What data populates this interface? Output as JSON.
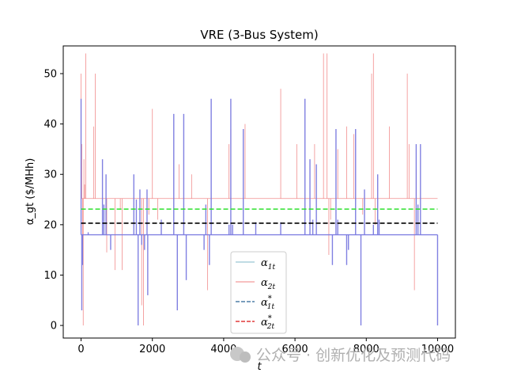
{
  "chart_data": {
    "type": "line",
    "title": "VRE (3-Bus System)",
    "xlabel": "t",
    "ylabel": "α_gt ($/MHh)",
    "xlim": [
      -500,
      10500
    ],
    "ylim": [
      -2.5,
      55.5
    ],
    "xticks": [
      0,
      2000,
      4000,
      6000,
      8000,
      10000
    ],
    "yticks": [
      0,
      10,
      20,
      30,
      40,
      50
    ],
    "grid": false,
    "legend_position": "lower-center",
    "series": [
      {
        "name": "α1t",
        "color": "#7a7ae0",
        "baseline": 18,
        "spikes": [
          {
            "x": 0,
            "y": 45
          },
          {
            "x": 20,
            "y": 3
          },
          {
            "x": 40,
            "y": 12
          },
          {
            "x": 200,
            "y": 18.5
          },
          {
            "x": 600,
            "y": 33
          },
          {
            "x": 640,
            "y": 24
          },
          {
            "x": 700,
            "y": 30
          },
          {
            "x": 830,
            "y": 15
          },
          {
            "x": 1480,
            "y": 30
          },
          {
            "x": 1550,
            "y": 25
          },
          {
            "x": 1600,
            "y": 0
          },
          {
            "x": 1650,
            "y": 27
          },
          {
            "x": 1700,
            "y": 16
          },
          {
            "x": 1780,
            "y": 15
          },
          {
            "x": 1850,
            "y": 27
          },
          {
            "x": 1870,
            "y": 6
          },
          {
            "x": 2250,
            "y": 21
          },
          {
            "x": 2600,
            "y": 42
          },
          {
            "x": 2700,
            "y": 3
          },
          {
            "x": 2880,
            "y": 42
          },
          {
            "x": 2950,
            "y": 9
          },
          {
            "x": 3450,
            "y": 15
          },
          {
            "x": 3500,
            "y": 24
          },
          {
            "x": 3600,
            "y": 12
          },
          {
            "x": 3650,
            "y": 45
          },
          {
            "x": 4150,
            "y": 20
          },
          {
            "x": 4200,
            "y": 45
          },
          {
            "x": 4250,
            "y": 20
          },
          {
            "x": 4550,
            "y": 39
          },
          {
            "x": 4900,
            "y": 20.5
          },
          {
            "x": 5600,
            "y": 20.5
          },
          {
            "x": 6280,
            "y": 45
          },
          {
            "x": 6420,
            "y": 33
          },
          {
            "x": 6500,
            "y": 21
          },
          {
            "x": 6600,
            "y": 32
          },
          {
            "x": 7050,
            "y": 12
          },
          {
            "x": 7150,
            "y": 39
          },
          {
            "x": 7200,
            "y": 21
          },
          {
            "x": 7450,
            "y": 12
          },
          {
            "x": 7500,
            "y": 15
          },
          {
            "x": 7700,
            "y": 39
          },
          {
            "x": 7850,
            "y": 0
          },
          {
            "x": 7950,
            "y": 27
          },
          {
            "x": 8200,
            "y": 20
          },
          {
            "x": 8320,
            "y": 30
          },
          {
            "x": 8360,
            "y": 21
          },
          {
            "x": 9400,
            "y": 36
          },
          {
            "x": 9450,
            "y": 24
          },
          {
            "x": 9520,
            "y": 36
          }
        ],
        "x_end": 10000
      },
      {
        "name": "α2t",
        "color": "#f08080",
        "baseline": 25.2,
        "spikes": [
          {
            "x": 0,
            "y": 50
          },
          {
            "x": 20,
            "y": 36
          },
          {
            "x": 40,
            "y": 16
          },
          {
            "x": 60,
            "y": 0
          },
          {
            "x": 80,
            "y": 33
          },
          {
            "x": 100,
            "y": 28
          },
          {
            "x": 130,
            "y": 54
          },
          {
            "x": 350,
            "y": 39.5
          },
          {
            "x": 400,
            "y": 50
          },
          {
            "x": 700,
            "y": 22
          },
          {
            "x": 720,
            "y": 14.5
          },
          {
            "x": 950,
            "y": 11
          },
          {
            "x": 1100,
            "y": 23
          },
          {
            "x": 1150,
            "y": 11
          },
          {
            "x": 1700,
            "y": 4
          },
          {
            "x": 1750,
            "y": 0
          },
          {
            "x": 1900,
            "y": 22
          },
          {
            "x": 2000,
            "y": 43
          },
          {
            "x": 2150,
            "y": 21
          },
          {
            "x": 2750,
            "y": 32
          },
          {
            "x": 3100,
            "y": 30
          },
          {
            "x": 3550,
            "y": 7
          },
          {
            "x": 4150,
            "y": 36
          },
          {
            "x": 4200,
            "y": 39
          },
          {
            "x": 4600,
            "y": 40
          },
          {
            "x": 5600,
            "y": 47
          },
          {
            "x": 6050,
            "y": 36
          },
          {
            "x": 6550,
            "y": 36
          },
          {
            "x": 6800,
            "y": 54
          },
          {
            "x": 6900,
            "y": 54
          },
          {
            "x": 6950,
            "y": 14
          },
          {
            "x": 7000,
            "y": 21
          },
          {
            "x": 7200,
            "y": 35
          },
          {
            "x": 7450,
            "y": 39.5
          },
          {
            "x": 7650,
            "y": 38
          },
          {
            "x": 7900,
            "y": 22
          },
          {
            "x": 8150,
            "y": 50
          },
          {
            "x": 8200,
            "y": 54
          },
          {
            "x": 8250,
            "y": 20
          },
          {
            "x": 8650,
            "y": 39.5
          },
          {
            "x": 9150,
            "y": 50
          },
          {
            "x": 9200,
            "y": 36
          },
          {
            "x": 9350,
            "y": 7
          },
          {
            "x": 9400,
            "y": 31
          }
        ],
        "x_end": 10000
      },
      {
        "name": "α1t*",
        "color": "#000000",
        "style": "dashed",
        "constant": 20.3,
        "x_range": [
          0,
          10000
        ]
      },
      {
        "name": "α2t*",
        "color": "#2ee02e",
        "style": "dashed",
        "constant": 23.1,
        "x_range": [
          0,
          10000
        ]
      }
    ],
    "legend": [
      {
        "label_base": "α",
        "sub": "1t",
        "sup": "",
        "color": "#7fb8c8",
        "style": "solid"
      },
      {
        "label_base": "α",
        "sub": "2t",
        "sup": "",
        "color": "#f08080",
        "style": "solid"
      },
      {
        "label_base": "α",
        "sub": "1t",
        "sup": "*",
        "color": "#4f7fa7",
        "style": "dashed"
      },
      {
        "label_base": "α",
        "sub": "2t",
        "sup": "*",
        "color": "#e03a3a",
        "style": "dashed"
      }
    ]
  },
  "watermark": "公众号 · 创新优化及预测代码"
}
